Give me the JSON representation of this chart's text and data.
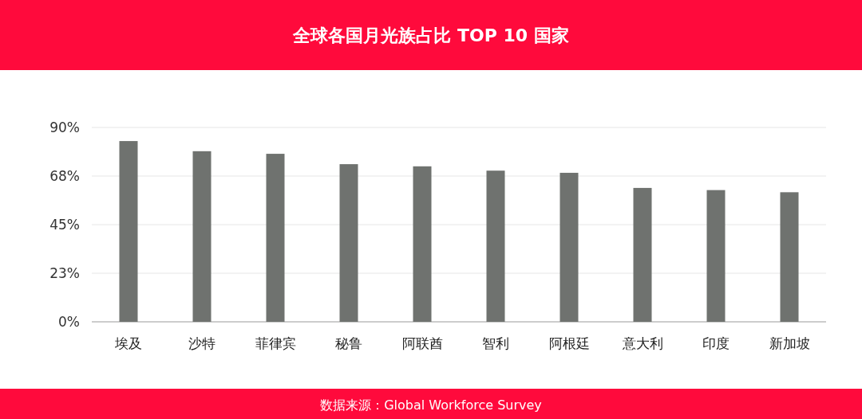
{
  "chart_data": {
    "type": "bar",
    "title": "全球各国月光族占比 TOP 10 国家",
    "categories": [
      "埃及",
      "沙特",
      "菲律宾",
      "秘鲁",
      "阿联酋",
      "智利",
      "阿根廷",
      "意大利",
      "印度",
      "新加坡"
    ],
    "values": [
      83.7,
      79,
      77.8,
      73,
      72,
      70,
      69,
      62,
      61,
      60
    ],
    "color": "#6f726f",
    "ylim": [
      0,
      90
    ],
    "yticks": [
      {
        "value": 0,
        "label": "0%"
      },
      {
        "value": 22.5,
        "label": "23%"
      },
      {
        "value": 45,
        "label": "45%"
      },
      {
        "value": 67.5,
        "label": "68%"
      },
      {
        "value": 90,
        "label": "90%"
      }
    ],
    "grid": "y",
    "annotations": [
      "数据来源：Global Workforce Survey"
    ]
  }
}
